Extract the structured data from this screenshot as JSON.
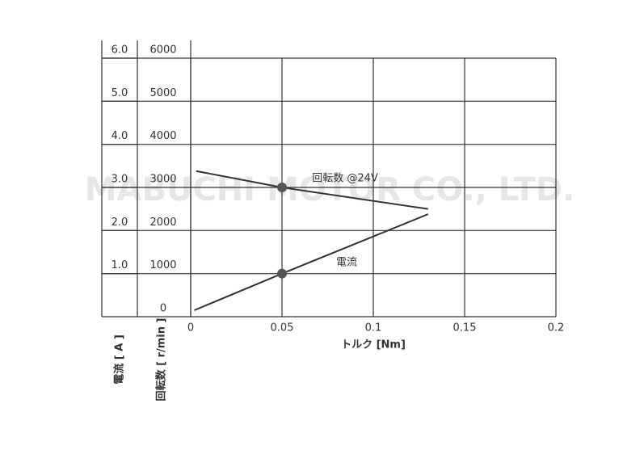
{
  "chart_data": {
    "type": "line",
    "x_label": "トルク [Nm]",
    "y_label": "回転数 [ r/min ]",
    "y2_label": "電流 [ A ]",
    "watermark": "MABUCHI MOTOR CO., LTD.",
    "xlim": [
      0,
      0.2
    ],
    "xticks": [
      0,
      0.05,
      0.1,
      0.15,
      0.2
    ],
    "ylim": [
      0,
      6000
    ],
    "yticks": [
      0,
      1000,
      2000,
      3000,
      4000,
      5000,
      6000
    ],
    "y2lim": [
      0,
      6
    ],
    "y2ticks": [
      {
        "value": 1,
        "label": "1.0"
      },
      {
        "value": 2,
        "label": "2.0"
      },
      {
        "value": 3,
        "label": "3.0"
      },
      {
        "value": 4,
        "label": "4.0"
      },
      {
        "value": 5,
        "label": "5.0"
      },
      {
        "value": 6,
        "label": "6.0"
      }
    ],
    "grid": true,
    "highlight_x": 0.05,
    "series": [
      {
        "name": "回転数 @24V",
        "color": "#333333",
        "x": [
          0.003,
          0.05,
          0.13
        ],
        "values": [
          3380,
          3000,
          2500
        ]
      },
      {
        "name": "電流",
        "color": "#333333",
        "axis": "y2",
        "x": [
          0.002,
          0.05,
          0.13
        ],
        "values": [
          0.15,
          1.0,
          2.38
        ]
      }
    ]
  }
}
